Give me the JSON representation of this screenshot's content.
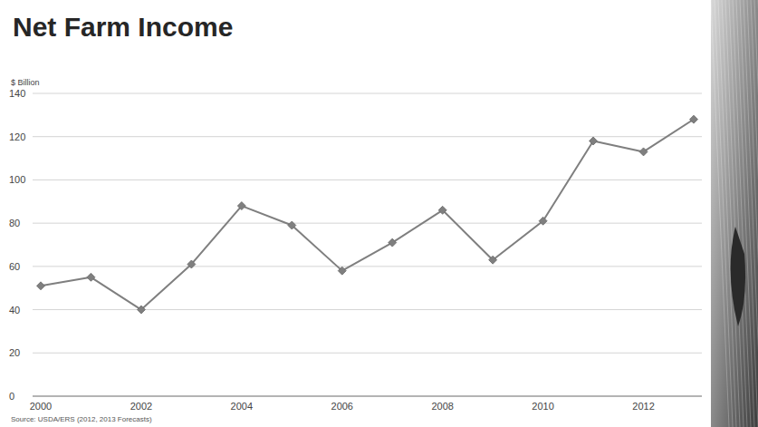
{
  "chart_data": {
    "type": "line",
    "title": "Net Farm Income",
    "y_label": "$ Billion",
    "source": "Source: USDA/ERS (2012, 2013 Forecasts)",
    "categories": [
      "2000",
      null,
      "2002",
      null,
      "2004",
      null,
      "2006",
      null,
      "2008",
      null,
      "2010",
      null,
      "2012",
      null
    ],
    "values": [
      51,
      55,
      40,
      61,
      88,
      79,
      58,
      71,
      86,
      63,
      81,
      118,
      113,
      128
    ],
    "color": "#7f7f7f",
    "marker": "diamond",
    "line_style": "solid",
    "ylim": [
      0,
      140
    ],
    "yticks": [
      0,
      20,
      40,
      60,
      80,
      100,
      120,
      140
    ],
    "grid": true
  }
}
